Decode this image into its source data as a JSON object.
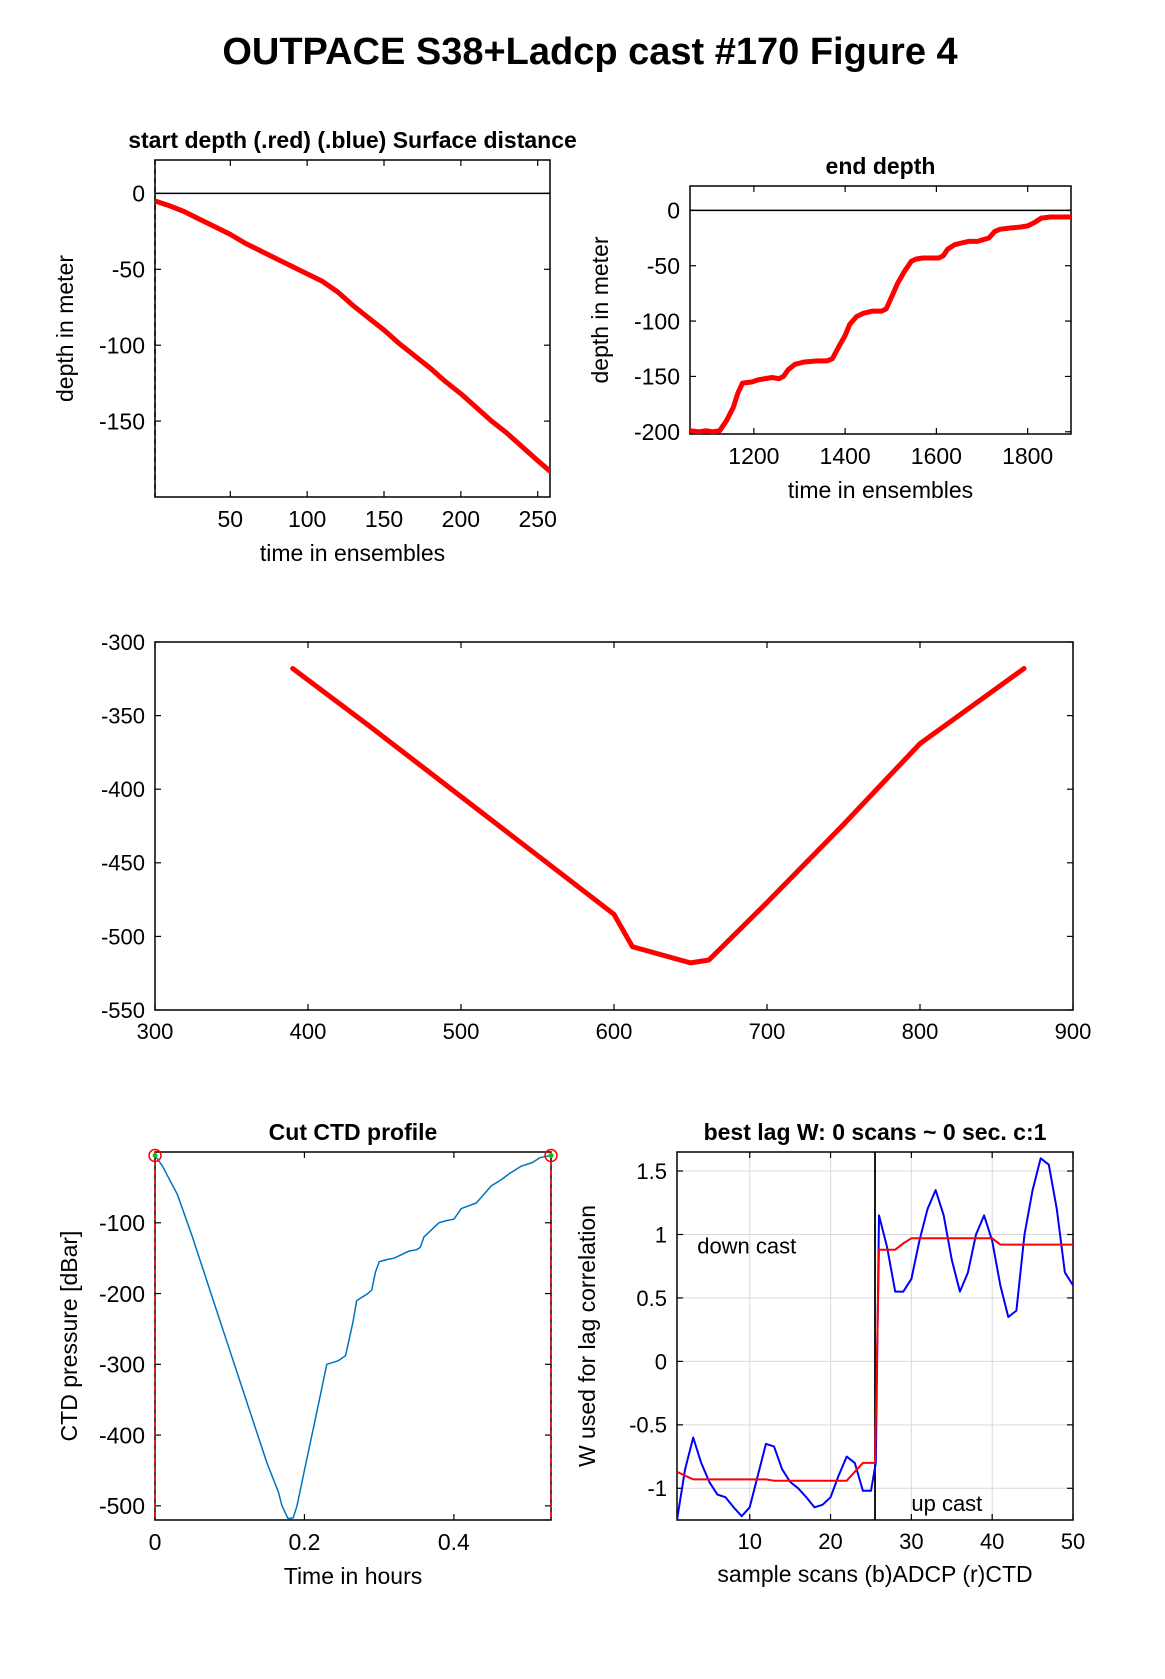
{
  "figure_title": "OUTPACE S38+Ladcp cast #170   Figure 4",
  "colors": {
    "red": "#ff0000",
    "blue": "#0000ff",
    "ctd": "#0072bd",
    "green": "#00cc00"
  },
  "chart_data": [
    {
      "id": "start_depth",
      "type": "line",
      "title": "start depth (.red) (.blue) Surface distance",
      "xlabel": "time in ensembles",
      "ylabel": "depth in meter",
      "xlim": [
        1,
        258
      ],
      "ylim": [
        -200,
        22
      ],
      "xticks": [
        50,
        100,
        150,
        200,
        250
      ],
      "yticks": [
        0,
        -50,
        -100,
        -150
      ],
      "series": [
        {
          "color": "#ff0000",
          "x": [
            1,
            10,
            20,
            30,
            40,
            50,
            60,
            70,
            80,
            90,
            100,
            110,
            120,
            130,
            140,
            150,
            160,
            170,
            180,
            190,
            200,
            210,
            220,
            230,
            240,
            250,
            258
          ],
          "y": [
            -5,
            -8,
            -12,
            -17,
            -22,
            -27,
            -33,
            -38,
            -43,
            -48,
            -53,
            -58,
            -65,
            -74,
            -82,
            -90,
            -99,
            -107,
            -115,
            -124,
            -132,
            -141,
            -150,
            -158,
            -167,
            -176,
            -183
          ]
        }
      ],
      "hlines": [
        0
      ],
      "vlines_dashed": [
        1
      ]
    },
    {
      "id": "end_depth",
      "type": "line",
      "title": "end depth",
      "xlabel": "time in ensembles",
      "ylabel": "depth in meter",
      "xlim": [
        1060,
        1895
      ],
      "ylim": [
        -202,
        22
      ],
      "xticks": [
        1200,
        1400,
        1600,
        1800
      ],
      "yticks": [
        0,
        -50,
        -100,
        -150,
        -200
      ],
      "series": [
        {
          "color": "#ff0000",
          "x": [
            1060,
            1080,
            1095,
            1110,
            1125,
            1140,
            1155,
            1165,
            1175,
            1195,
            1210,
            1240,
            1255,
            1265,
            1275,
            1290,
            1310,
            1340,
            1360,
            1372,
            1385,
            1400,
            1410,
            1425,
            1440,
            1460,
            1480,
            1490,
            1502,
            1515,
            1530,
            1545,
            1555,
            1570,
            1590,
            1605,
            1615,
            1625,
            1640,
            1660,
            1670,
            1690,
            1715,
            1728,
            1740,
            1760,
            1785,
            1800,
            1815,
            1830,
            1850,
            1870,
            1895
          ],
          "y": [
            -199,
            -200,
            -199,
            -200,
            -199,
            -190,
            -178,
            -165,
            -156,
            -155,
            -153,
            -151,
            -152,
            -150,
            -144,
            -139,
            -137,
            -136,
            -136,
            -134,
            -124,
            -113,
            -103,
            -96,
            -93,
            -91,
            -91,
            -89,
            -78,
            -66,
            -55,
            -46,
            -44,
            -43,
            -43,
            -43,
            -41,
            -35,
            -31,
            -29,
            -28,
            -28,
            -25,
            -19,
            -17,
            -16,
            -15,
            -14,
            -11,
            -7,
            -6,
            -6,
            -6
          ]
        }
      ],
      "hlines": [
        0
      ]
    },
    {
      "id": "middle",
      "type": "line",
      "xlim": [
        300,
        900
      ],
      "ylim": [
        -550,
        -300
      ],
      "xticks": [
        300,
        400,
        500,
        600,
        700,
        800,
        900
      ],
      "yticks": [
        -300,
        -350,
        -400,
        -450,
        -500,
        -550
      ],
      "series": [
        {
          "color": "#ff0000",
          "x": [
            390,
            440,
            480,
            520,
            560,
            600,
            612,
            650,
            662,
            700,
            750,
            800,
            868
          ],
          "y": [
            -318,
            -357,
            -389,
            -421,
            -453,
            -485,
            -507,
            -518,
            -516,
            -477,
            -424,
            -369,
            -318
          ]
        }
      ]
    },
    {
      "id": "ctd_profile",
      "type": "line",
      "title": "Cut CTD profile",
      "xlabel": "Time in hours",
      "ylabel": "CTD pressure [dBar]",
      "xlim": [
        0,
        0.53
      ],
      "ylim": [
        -520,
        0
      ],
      "xticks": [
        0,
        0.2,
        0.4
      ],
      "xticklabels": [
        "0",
        "0.2",
        "0.4"
      ],
      "yticks": [
        -100,
        -200,
        -300,
        -400,
        -500
      ],
      "series": [
        {
          "color": "#0072bd",
          "x": [
            0,
            0.01,
            0.02,
            0.03,
            0.05,
            0.075,
            0.1,
            0.125,
            0.15,
            0.165,
            0.17,
            0.178,
            0.185,
            0.19,
            0.2,
            0.21,
            0.22,
            0.23,
            0.245,
            0.255,
            0.265,
            0.27,
            0.285,
            0.29,
            0.295,
            0.3,
            0.31,
            0.32,
            0.33,
            0.34,
            0.35,
            0.355,
            0.36,
            0.38,
            0.39,
            0.4,
            0.41,
            0.43,
            0.44,
            0.45,
            0.465,
            0.475,
            0.49,
            0.505,
            0.515,
            0.53
          ],
          "y": [
            -5,
            -20,
            -40,
            -60,
            -120,
            -200,
            -280,
            -360,
            -440,
            -480,
            -500,
            -518,
            -517,
            -500,
            -450,
            -400,
            -350,
            -300,
            -295,
            -288,
            -240,
            -210,
            -200,
            -195,
            -170,
            -155,
            -152,
            -150,
            -145,
            -140,
            -138,
            -135,
            -120,
            -100,
            -97,
            -95,
            -80,
            -72,
            -60,
            -48,
            -38,
            -30,
            -20,
            -15,
            -8,
            -5
          ]
        }
      ],
      "markers": [
        {
          "x": 0,
          "y": -5
        },
        {
          "x": 0.53,
          "y": -5
        }
      ],
      "vlines_dashed": [
        0,
        0.53
      ]
    },
    {
      "id": "best_lag",
      "type": "line",
      "title": "best lag W: 0 scans ~ 0 sec.  c:1",
      "xlabel": "sample scans (b)ADCP (r)CTD",
      "ylabel": "W used for lag correlation",
      "xlim": [
        1,
        50
      ],
      "ylim": [
        -1.25,
        1.65
      ],
      "xticks": [
        10,
        20,
        30,
        40,
        50
      ],
      "yticks": [
        1.5,
        1,
        0.5,
        0,
        -0.5,
        -1
      ],
      "yticklabels": [
        "1.5",
        "1",
        "0.5",
        "0",
        "-0.5",
        "-1"
      ],
      "grid": true,
      "vline_solid": 25.5,
      "annotations": [
        {
          "text": "down cast",
          "x": 3.5,
          "y": 0.85
        },
        {
          "text": "up cast",
          "x": 30,
          "y": -1.18
        }
      ],
      "series": [
        {
          "color": "#0000ff",
          "x": [
            1,
            2,
            3,
            4,
            5,
            6,
            7,
            8,
            9,
            10,
            11,
            12,
            13,
            14,
            15,
            16,
            17,
            18,
            19,
            20,
            21,
            22,
            23,
            24,
            25,
            25.6,
            26,
            27,
            28,
            29,
            30,
            31,
            32,
            33,
            34,
            35,
            36,
            37,
            38,
            39,
            40,
            41,
            42,
            43,
            44,
            45,
            46,
            47,
            48,
            49,
            50
          ],
          "y": [
            -1.25,
            -0.85,
            -0.6,
            -0.8,
            -0.95,
            -1.05,
            -1.07,
            -1.15,
            -1.22,
            -1.15,
            -0.9,
            -0.65,
            -0.67,
            -0.85,
            -0.95,
            -1.0,
            -1.07,
            -1.15,
            -1.13,
            -1.07,
            -0.9,
            -0.75,
            -0.8,
            -1.02,
            -1.02,
            -0.8,
            1.15,
            0.9,
            0.55,
            0.55,
            0.65,
            0.95,
            1.2,
            1.35,
            1.15,
            0.8,
            0.55,
            0.7,
            1.0,
            1.15,
            0.95,
            0.6,
            0.35,
            0.4,
            1.0,
            1.35,
            1.6,
            1.55,
            1.2,
            0.7,
            0.6
          ]
        },
        {
          "color": "#ff0000",
          "x": [
            1,
            2,
            3,
            12,
            13,
            21,
            22,
            23,
            24,
            25,
            25.5,
            26,
            28,
            29,
            30,
            40,
            41,
            45,
            46,
            50
          ],
          "y": [
            -0.87,
            -0.9,
            -0.93,
            -0.93,
            -0.94,
            -0.94,
            -0.94,
            -0.87,
            -0.8,
            -0.8,
            -0.8,
            0.88,
            0.88,
            0.93,
            0.97,
            0.97,
            0.92,
            0.92,
            0.92,
            0.92
          ]
        }
      ]
    }
  ]
}
